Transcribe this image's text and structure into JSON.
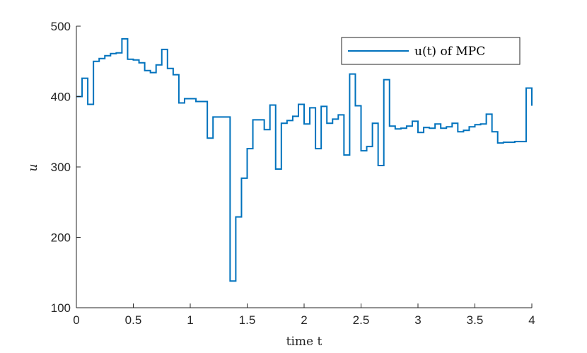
{
  "chart_data": {
    "type": "line",
    "step": true,
    "title": "",
    "xlabel": "time t",
    "ylabel": "u",
    "xlim": [
      0,
      4
    ],
    "ylim": [
      100,
      500
    ],
    "xticks": [
      0,
      0.5,
      1,
      1.5,
      2,
      2.5,
      3,
      3.5,
      4
    ],
    "xtick_labels": [
      "0",
      "0.5",
      "1",
      "1.5",
      "2",
      "2.5",
      "3",
      "3.5",
      "4"
    ],
    "yticks": [
      100,
      200,
      300,
      400,
      500
    ],
    "ytick_labels": [
      "100",
      "200",
      "300",
      "400",
      "500"
    ],
    "grid": false,
    "legend_position": "top-right",
    "line_color": "#0072BD",
    "series": [
      {
        "name": "u(t) of MPC",
        "x": [
          0,
          0.05,
          0.1,
          0.15,
          0.2,
          0.25,
          0.3,
          0.35,
          0.4,
          0.45,
          0.5,
          0.55,
          0.6,
          0.65,
          0.7,
          0.75,
          0.8,
          0.85,
          0.9,
          0.95,
          1.0,
          1.05,
          1.1,
          1.15,
          1.2,
          1.25,
          1.3,
          1.35,
          1.4,
          1.45,
          1.5,
          1.55,
          1.6,
          1.65,
          1.7,
          1.75,
          1.8,
          1.85,
          1.9,
          1.95,
          2.0,
          2.05,
          2.1,
          2.15,
          2.2,
          2.25,
          2.3,
          2.35,
          2.4,
          2.45,
          2.5,
          2.55,
          2.6,
          2.65,
          2.7,
          2.75,
          2.8,
          2.85,
          2.9,
          2.95,
          3.0,
          3.05,
          3.1,
          3.15,
          3.2,
          3.25,
          3.3,
          3.35,
          3.4,
          3.45,
          3.5,
          3.55,
          3.6,
          3.65,
          3.7,
          3.75,
          3.8,
          3.85,
          3.9,
          3.95,
          4.0
        ],
        "y": [
          400,
          426,
          389,
          450,
          454,
          458,
          461,
          462,
          482,
          453,
          452,
          448,
          437,
          434,
          445,
          467,
          440,
          431,
          391,
          397,
          397,
          393,
          393,
          341,
          371,
          371,
          371,
          138,
          229,
          284,
          326,
          367,
          367,
          353,
          388,
          297,
          362,
          366,
          372,
          389,
          361,
          384,
          326,
          386,
          362,
          368,
          374,
          317,
          432,
          387,
          323,
          329,
          362,
          302,
          424,
          358,
          354,
          355,
          358,
          365,
          349,
          356,
          355,
          361,
          355,
          357,
          362,
          350,
          352,
          357,
          360,
          361,
          375,
          350,
          334,
          335,
          335,
          336,
          336,
          412,
          387
        ]
      }
    ]
  }
}
